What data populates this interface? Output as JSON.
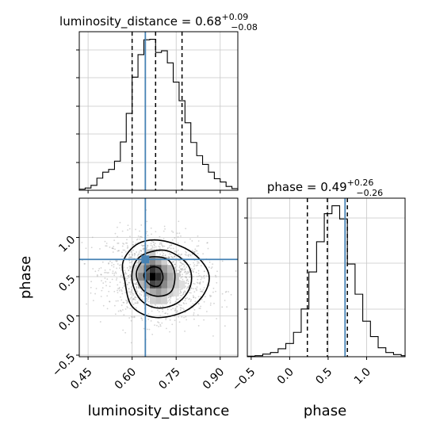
{
  "chart_data": [
    {
      "type": "histogram",
      "panel": "marginal-luminosity_distance",
      "title": {
        "prefix": "luminosity_distance = 0.68",
        "upper": "+0.09",
        "lower": "−0.08"
      },
      "x_range": [
        0.42,
        0.96
      ],
      "bin_edges": [
        0.42,
        0.44,
        0.46,
        0.48,
        0.5,
        0.52,
        0.54,
        0.56,
        0.58,
        0.6,
        0.62,
        0.64,
        0.66,
        0.68,
        0.7,
        0.72,
        0.74,
        0.76,
        0.78,
        0.8,
        0.82,
        0.84,
        0.86,
        0.88,
        0.9,
        0.92,
        0.94,
        0.96
      ],
      "counts": [
        2,
        4,
        9,
        22,
        33,
        38,
        53,
        88,
        140,
        206,
        247,
        274,
        275,
        251,
        254,
        232,
        197,
        163,
        123,
        87,
        63,
        47,
        33,
        21,
        15,
        7,
        3
      ],
      "quantiles": [
        0.6,
        0.68,
        0.77
      ],
      "truth": 0.645,
      "grid": true
    },
    {
      "type": "histogram",
      "panel": "marginal-phase",
      "title": {
        "prefix": "phase = 0.49",
        "upper": "+0.26",
        "lower": "−0.26"
      },
      "x_range": [
        -0.55,
        1.5
      ],
      "bin_edges": [
        -0.55,
        -0.45,
        -0.35,
        -0.25,
        -0.15,
        -0.05,
        0.05,
        0.15,
        0.25,
        0.35,
        0.45,
        0.55,
        0.65,
        0.75,
        0.85,
        0.95,
        1.05,
        1.15,
        1.25,
        1.35,
        1.45,
        1.5
      ],
      "counts": [
        1,
        2,
        5,
        8,
        15,
        25,
        46,
        90,
        160,
        217,
        270,
        285,
        260,
        175,
        118,
        67,
        38,
        17,
        8,
        4,
        2
      ],
      "quantiles": [
        0.23,
        0.49,
        0.75
      ],
      "truth": 0.72,
      "grid": true,
      "xlabel": "phase",
      "xticks": [
        -0.5,
        0.0,
        0.5,
        1.0
      ],
      "xtick_labels": [
        "−0.5",
        "0.0",
        "0.5",
        "1.0"
      ]
    },
    {
      "type": "scatter-contour",
      "panel": "joint-luminosity_distance-phase",
      "x_range": [
        0.42,
        0.96
      ],
      "y_range": [
        -0.52,
        1.5
      ],
      "xlabel": "luminosity_distance",
      "ylabel": "phase",
      "xticks": [
        0.45,
        0.6,
        0.75,
        0.9
      ],
      "xtick_labels": [
        "0.45",
        "0.60",
        "0.75",
        "0.90"
      ],
      "yticks": [
        -0.5,
        0.0,
        0.5,
        1.0
      ],
      "ytick_labels": [
        "−0.5",
        "0.0",
        "0.5",
        "1.0"
      ],
      "contours": [
        {
          "level": "outer",
          "points": [
            [
              0.575,
              0.45
            ],
            [
              0.6,
              0.12
            ],
            [
              0.68,
              -0.02
            ],
            [
              0.78,
              0.06
            ],
            [
              0.845,
              0.28
            ],
            [
              0.86,
              0.55
            ],
            [
              0.8,
              0.82
            ],
            [
              0.7,
              0.96
            ],
            [
              0.62,
              0.92
            ],
            [
              0.57,
              0.7
            ]
          ]
        },
        {
          "level": "third",
          "points": [
            [
              0.6,
              0.45
            ],
            [
              0.63,
              0.2
            ],
            [
              0.69,
              0.1
            ],
            [
              0.76,
              0.18
            ],
            [
              0.8,
              0.4
            ],
            [
              0.79,
              0.65
            ],
            [
              0.72,
              0.83
            ],
            [
              0.65,
              0.8
            ],
            [
              0.61,
              0.68
            ]
          ]
        },
        {
          "level": "second",
          "points": [
            [
              0.615,
              0.5
            ],
            [
              0.64,
              0.32
            ],
            [
              0.69,
              0.25
            ],
            [
              0.735,
              0.32
            ],
            [
              0.745,
              0.55
            ],
            [
              0.72,
              0.72
            ],
            [
              0.66,
              0.75
            ],
            [
              0.625,
              0.65
            ]
          ]
        },
        {
          "level": "inner",
          "points": [
            [
              0.64,
              0.52
            ],
            [
              0.66,
              0.4
            ],
            [
              0.69,
              0.38
            ],
            [
              0.705,
              0.48
            ],
            [
              0.695,
              0.6
            ],
            [
              0.665,
              0.62
            ]
          ]
        }
      ],
      "density_cells": [
        {
          "x": 0.67,
          "y": 0.5,
          "shade": "#000000"
        },
        {
          "x": 0.67,
          "y": 0.6,
          "shade": "#333333"
        },
        {
          "x": 0.69,
          "y": 0.5,
          "shade": "#2a2a2a"
        },
        {
          "x": 0.65,
          "y": 0.5,
          "shade": "#555555"
        },
        {
          "x": 0.69,
          "y": 0.4,
          "shade": "#555555"
        },
        {
          "x": 0.67,
          "y": 0.4,
          "shade": "#444444"
        },
        {
          "x": 0.65,
          "y": 0.6,
          "shade": "#666666"
        },
        {
          "x": 0.69,
          "y": 0.6,
          "shade": "#555555"
        },
        {
          "x": 0.71,
          "y": 0.5,
          "shade": "#777777"
        },
        {
          "x": 0.71,
          "y": 0.4,
          "shade": "#888888"
        },
        {
          "x": 0.63,
          "y": 0.5,
          "shade": "#888888"
        },
        {
          "x": 0.65,
          "y": 0.7,
          "shade": "#999999"
        },
        {
          "x": 0.67,
          "y": 0.7,
          "shade": "#888888"
        },
        {
          "x": 0.69,
          "y": 0.3,
          "shade": "#999999"
        },
        {
          "x": 0.71,
          "y": 0.6,
          "shade": "#999999"
        },
        {
          "x": 0.73,
          "y": 0.5,
          "shade": "#aaaaaa"
        },
        {
          "x": 0.73,
          "y": 0.4,
          "shade": "#b3b3b3"
        },
        {
          "x": 0.63,
          "y": 0.6,
          "shade": "#aaaaaa"
        },
        {
          "x": 0.65,
          "y": 0.4,
          "shade": "#999999"
        },
        {
          "x": 0.67,
          "y": 0.3,
          "shade": "#aaaaaa"
        },
        {
          "x": 0.71,
          "y": 0.3,
          "shade": "#b3b3b3"
        },
        {
          "x": 0.63,
          "y": 0.4,
          "shade": "#b8b8b8"
        },
        {
          "x": 0.69,
          "y": 0.7,
          "shade": "#aaaaaa"
        },
        {
          "x": 0.73,
          "y": 0.6,
          "shade": "#bbbbbb"
        },
        {
          "x": 0.75,
          "y": 0.4,
          "shade": "#cccccc"
        },
        {
          "x": 0.75,
          "y": 0.5,
          "shade": "#c8c8c8"
        },
        {
          "x": 0.63,
          "y": 0.7,
          "shade": "#c0c0c0"
        },
        {
          "x": 0.67,
          "y": 0.8,
          "shade": "#c8c8c8"
        },
        {
          "x": 0.65,
          "y": 0.8,
          "shade": "#cfcfcf"
        },
        {
          "x": 0.69,
          "y": 0.2,
          "shade": "#c8c8c8"
        },
        {
          "x": 0.71,
          "y": 0.2,
          "shade": "#d0d0d0"
        },
        {
          "x": 0.61,
          "y": 0.5,
          "shade": "#cccccc"
        },
        {
          "x": 0.61,
          "y": 0.6,
          "shade": "#d4d4d4"
        },
        {
          "x": 0.73,
          "y": 0.3,
          "shade": "#cdcdcd"
        },
        {
          "x": 0.75,
          "y": 0.3,
          "shade": "#dddddd"
        },
        {
          "x": 0.77,
          "y": 0.4,
          "shade": "#dedede"
        },
        {
          "x": 0.71,
          "y": 0.7,
          "shade": "#cfcfcf"
        },
        {
          "x": 0.65,
          "y": 0.3,
          "shade": "#c0c0c0"
        },
        {
          "x": 0.67,
          "y": 0.2,
          "shade": "#d0d0d0"
        }
      ],
      "scatter": {
        "center": [
          0.685,
          0.49
        ],
        "sd": [
          0.085,
          0.26
        ],
        "corr": -0.15,
        "n": 1600,
        "color": "#a0a0a0"
      },
      "truth": [
        0.645,
        0.72
      ],
      "truth_color": "#4682b4",
      "grid": true
    }
  ]
}
